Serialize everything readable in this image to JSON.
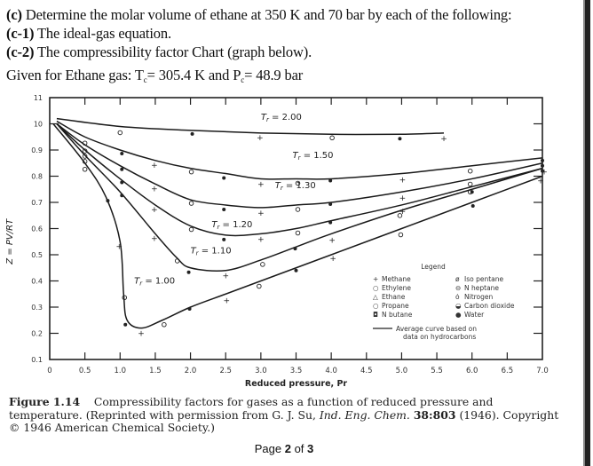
{
  "problem": {
    "c_label": "(c)",
    "c_text": "Determine the molar volume of ethane at 350 K and 70 bar by each of the following:",
    "c1_label": "(c-1)",
    "c1_text": "The ideal-gas equation.",
    "c2_label": "(c-2)",
    "c2_text": "The compressibility factor Chart (graph below).",
    "given_prefix": "Given for Ethane gas: T",
    "tc_sub": "c",
    "tc_value": "= 305.4 K and P",
    "pc_sub": "c",
    "pc_value": "= 48.9 bar"
  },
  "caption": {
    "figure_label": "Figure 1.14",
    "text1": "Compressibility factors for gases as a function of reduced pressure and temperature. (Reprinted with permission from G. J. Su, ",
    "journal": "Ind. Eng. Chem.",
    "volume": "38:803",
    "text2": "(1946). Copyright © 1946 American Chemical Society.)"
  },
  "page": {
    "prefix": "Page ",
    "current": "2",
    "middle": " of ",
    "total": "3"
  },
  "chart_data": {
    "type": "line",
    "title": "",
    "xlabel": "Reduced pressure, Pr",
    "ylabel": "Z = PV/RT",
    "xlim": [
      0,
      7.0
    ],
    "ylim": [
      0.1,
      1.1
    ],
    "x_ticks": [
      "0",
      "0.5",
      "1.0",
      "1.5",
      "2.0",
      "2.5",
      "3.0",
      "3.5",
      "4.0",
      "4.5",
      "5.0",
      "5.5",
      "6.0",
      "6.5",
      "7.0"
    ],
    "y_ticks": [
      "0.1",
      "0.2",
      "0.3",
      "0.4",
      "0.5",
      "0.6",
      "0.7",
      "0.8",
      "0.9",
      "10",
      "11"
    ],
    "grid": false,
    "series": [
      {
        "name": "Tr = 2.00",
        "x": [
          0.1,
          1.0,
          2.0,
          3.0,
          4.0,
          5.0,
          5.6
        ],
        "y": [
          1.02,
          0.99,
          0.975,
          0.965,
          0.96,
          0.96,
          0.965
        ]
      },
      {
        "name": "Tr = 1.50",
        "x": [
          0.1,
          0.5,
          1.0,
          1.5,
          2.0,
          2.5,
          3.0,
          3.5,
          4.0,
          5.0,
          6.0,
          7.0
        ],
        "y": [
          1.01,
          0.95,
          0.9,
          0.86,
          0.83,
          0.81,
          0.79,
          0.79,
          0.79,
          0.81,
          0.84,
          0.87
        ]
      },
      {
        "name": "Tr = 1.30",
        "x": [
          0.1,
          0.5,
          1.0,
          1.5,
          2.0,
          2.5,
          3.0,
          3.5,
          4.0,
          5.0,
          6.0,
          7.0
        ],
        "y": [
          1.0,
          0.92,
          0.84,
          0.77,
          0.71,
          0.69,
          0.68,
          0.69,
          0.7,
          0.74,
          0.79,
          0.85
        ]
      },
      {
        "name": "Tr = 1.20",
        "x": [
          0.1,
          0.5,
          1.0,
          1.5,
          2.0,
          2.5,
          3.0,
          3.5,
          4.0,
          5.0,
          6.0,
          7.0
        ],
        "y": [
          1.0,
          0.9,
          0.79,
          0.69,
          0.61,
          0.575,
          0.58,
          0.6,
          0.63,
          0.69,
          0.76,
          0.83
        ]
      },
      {
        "name": "Tr = 1.10",
        "x": [
          0.1,
          0.5,
          1.0,
          1.5,
          1.8,
          2.0,
          2.5,
          3.0,
          3.5,
          4.0,
          5.0,
          6.0,
          7.0
        ],
        "y": [
          1.0,
          0.88,
          0.74,
          0.58,
          0.49,
          0.45,
          0.44,
          0.48,
          0.53,
          0.58,
          0.67,
          0.75,
          0.83
        ]
      },
      {
        "name": "Tr = 1.00",
        "x": [
          0.05,
          0.5,
          0.8,
          1.0,
          1.05,
          1.1,
          1.3,
          1.6,
          2.0,
          2.5,
          3.0,
          3.5,
          4.0,
          5.0,
          6.0,
          7.0
        ],
        "y": [
          1.0,
          0.85,
          0.72,
          0.55,
          0.35,
          0.25,
          0.22,
          0.25,
          0.3,
          0.35,
          0.4,
          0.45,
          0.5,
          0.6,
          0.7,
          0.8
        ]
      }
    ],
    "curve_labels": [
      "Tr = 2.00",
      "Tr = 1.50",
      "Tr = 1.30",
      "Tr = 1.20",
      "Tr = 1.10",
      "Tr = 1.00"
    ],
    "legend": {
      "title": "Legend",
      "position": "lower-right",
      "entries": [
        {
          "symbol": "+",
          "label": "Methane"
        },
        {
          "symbol": "○",
          "label": "Ethylene"
        },
        {
          "symbol": "△",
          "label": "Ethane"
        },
        {
          "symbol": "○",
          "label": "Propane"
        },
        {
          "symbol": "◘",
          "label": "N butane"
        },
        {
          "symbol": "ø",
          "label": "Iso pentane"
        },
        {
          "symbol": "⊖",
          "label": "N heptane"
        },
        {
          "symbol": "ȯ",
          "label": "Nitrogen"
        },
        {
          "symbol": "◒",
          "label": "Carbon dioxide"
        },
        {
          "symbol": "●",
          "label": "Water"
        }
      ],
      "line_entry": "Average curve based on data on hydrocarbons"
    }
  }
}
